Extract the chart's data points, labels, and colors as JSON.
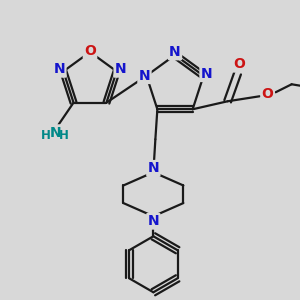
{
  "bg_color": "#d8d8d8",
  "bond_color": "#1a1a1a",
  "N_color": "#1414cc",
  "O_color": "#cc1414",
  "NH2_color": "#008888",
  "line_width": 1.6,
  "dpi": 100,
  "fig_size": [
    3.0,
    3.0
  ],
  "xlim": [
    0,
    300
  ],
  "ylim": [
    0,
    300
  ]
}
